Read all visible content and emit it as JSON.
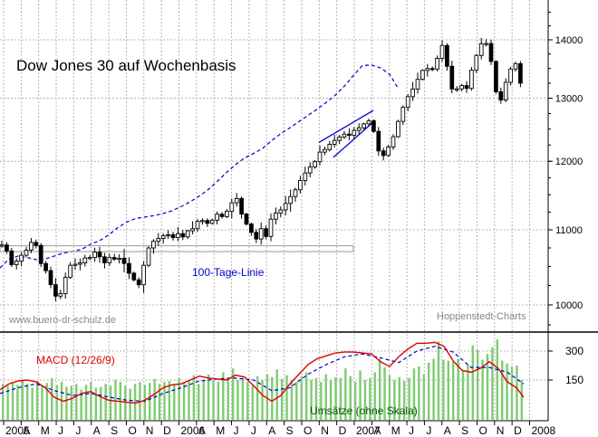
{
  "chart_data": [
    {
      "type": "candlestick",
      "title": "Dow Jones 30 auf Wochenbasis",
      "source": "Hoppenstedt-Charts",
      "watermark": "www.buero-dr-schulz.de",
      "y_scale": "log",
      "ylim": [
        9700,
        14700
      ],
      "y_ticks": [
        10000,
        11000,
        12000,
        13000,
        14000
      ],
      "grid": true,
      "x_labels": [
        "2005",
        "A",
        "M",
        "J",
        "J",
        "A",
        "S",
        "O",
        "N",
        "D",
        "2006",
        "A",
        "M",
        "J",
        "J",
        "A",
        "S",
        "O",
        "N",
        "D",
        "2007",
        "A",
        "M",
        "J",
        "J",
        "A",
        "S",
        "O",
        "N",
        "D",
        "2008"
      ],
      "colors": {
        "up_candle": "#ffffff",
        "down_candle": "#000000",
        "ma_line": "#0000cc",
        "trendline": "#0000cc",
        "grid": "#b4b4b4"
      },
      "annotations": [
        {
          "text": "100-Tage-Linie",
          "color": "#0000cc"
        }
      ],
      "series": [
        {
          "name": "100-Tage-Linie",
          "style": "dashed",
          "points": [
            [
              0,
              10480
            ],
            [
              10,
              10600
            ],
            [
              20,
              10640
            ],
            [
              30,
              10620
            ],
            [
              40,
              10590
            ],
            [
              50,
              10600
            ],
            [
              60,
              10640
            ],
            [
              70,
              10680
            ],
            [
              80,
              10700
            ],
            [
              90,
              10730
            ],
            [
              100,
              10800
            ],
            [
              110,
              10850
            ],
            [
              120,
              10930
            ],
            [
              130,
              11030
            ],
            [
              140,
              11110
            ],
            [
              150,
              11160
            ],
            [
              160,
              11180
            ],
            [
              170,
              11200
            ],
            [
              180,
              11230
            ],
            [
              190,
              11270
            ],
            [
              200,
              11330
            ],
            [
              210,
              11400
            ],
            [
              220,
              11480
            ],
            [
              230,
              11580
            ],
            [
              240,
              11700
            ],
            [
              250,
              11830
            ],
            [
              260,
              11950
            ],
            [
              270,
              12050
            ],
            [
              280,
              12120
            ],
            [
              290,
              12200
            ],
            [
              300,
              12320
            ],
            [
              310,
              12430
            ],
            [
              320,
              12520
            ],
            [
              330,
              12620
            ],
            [
              340,
              12720
            ],
            [
              350,
              12820
            ],
            [
              360,
              12930
            ],
            [
              370,
              13050
            ],
            [
              380,
              13200
            ],
            [
              390,
              13380
            ],
            [
              400,
              13550
            ],
            [
              410,
              13560
            ],
            [
              420,
              13510
            ],
            [
              430,
              13400
            ],
            [
              440,
              13150
            ]
          ]
        }
      ],
      "candles": {
        "close_path": [
          [
            0,
            10820
          ],
          [
            8,
            10700
          ],
          [
            14,
            10480
          ],
          [
            20,
            10610
          ],
          [
            28,
            10700
          ],
          [
            34,
            10820
          ],
          [
            38,
            10880
          ],
          [
            44,
            10560
          ],
          [
            52,
            10420
          ],
          [
            58,
            10180
          ],
          [
            64,
            10060
          ],
          [
            70,
            10240
          ],
          [
            74,
            10450
          ],
          [
            80,
            10560
          ],
          [
            86,
            10500
          ],
          [
            92,
            10620
          ],
          [
            98,
            10600
          ],
          [
            104,
            10700
          ],
          [
            110,
            10630
          ],
          [
            116,
            10540
          ],
          [
            122,
            10640
          ],
          [
            128,
            10580
          ],
          [
            134,
            10630
          ],
          [
            140,
            10450
          ],
          [
            148,
            10320
          ],
          [
            154,
            10250
          ],
          [
            158,
            10490
          ],
          [
            164,
            10750
          ],
          [
            170,
            10850
          ],
          [
            178,
            10900
          ],
          [
            184,
            10950
          ],
          [
            190,
            10880
          ],
          [
            196,
            10950
          ],
          [
            202,
            10900
          ],
          [
            208,
            11000
          ],
          [
            214,
            11020
          ],
          [
            220,
            11170
          ],
          [
            226,
            11100
          ],
          [
            232,
            11080
          ],
          [
            238,
            11230
          ],
          [
            246,
            11180
          ],
          [
            254,
            11330
          ],
          [
            260,
            11510
          ],
          [
            264,
            11300
          ],
          [
            270,
            11120
          ],
          [
            276,
            11000
          ],
          [
            282,
            10850
          ],
          [
            288,
            11020
          ],
          [
            294,
            10900
          ],
          [
            300,
            11200
          ],
          [
            306,
            11250
          ],
          [
            312,
            11300
          ],
          [
            318,
            11440
          ],
          [
            324,
            11520
          ],
          [
            330,
            11680
          ],
          [
            336,
            11810
          ],
          [
            342,
            11910
          ],
          [
            348,
            12000
          ],
          [
            352,
            12140
          ],
          [
            356,
            12140
          ],
          [
            362,
            12240
          ],
          [
            368,
            12310
          ],
          [
            374,
            12370
          ],
          [
            380,
            12420
          ],
          [
            386,
            12400
          ],
          [
            392,
            12500
          ],
          [
            398,
            12530
          ],
          [
            404,
            12620
          ],
          [
            410,
            12640
          ],
          [
            416,
            12200
          ],
          [
            422,
            12060
          ],
          [
            428,
            12200
          ],
          [
            434,
            12380
          ],
          [
            440,
            12650
          ],
          [
            446,
            12900
          ],
          [
            452,
            13080
          ],
          [
            458,
            13200
          ],
          [
            464,
            13430
          ],
          [
            470,
            13520
          ],
          [
            476,
            13450
          ],
          [
            482,
            13650
          ],
          [
            488,
            13900
          ],
          [
            492,
            13720
          ],
          [
            496,
            13200
          ],
          [
            502,
            13100
          ],
          [
            508,
            13250
          ],
          [
            514,
            13100
          ],
          [
            518,
            13350
          ],
          [
            524,
            13650
          ],
          [
            530,
            13900
          ],
          [
            534,
            14000
          ],
          [
            538,
            13900
          ],
          [
            542,
            13620
          ],
          [
            548,
            13050
          ],
          [
            554,
            12950
          ],
          [
            560,
            13400
          ],
          [
            564,
            13500
          ],
          [
            570,
            13600
          ],
          [
            574,
            13300
          ],
          [
            578,
            12800
          ]
        ]
      },
      "trendlines": [
        [
          [
            352,
            12290
          ],
          [
            412,
            12800
          ]
        ],
        [
          [
            368,
            12060
          ],
          [
            414,
            12640
          ]
        ],
        [
          [
            0,
            10700
          ],
          [
            390,
            10700
          ]
        ],
        [
          [
            0,
            10780
          ],
          [
            390,
            10780
          ]
        ]
      ]
    },
    {
      "type": "combo",
      "title": "MACD (12/26/9)",
      "title_color": "#dd0000",
      "volume_label": "Umsätze (ohne Skala)",
      "y_ticks": [
        150,
        300
      ],
      "ylim": [
        -80,
        360
      ],
      "colors": {
        "macd": "#dd0000",
        "signal": "#0000cc",
        "volume": "#7fcc72",
        "grid": "#b4b4b4"
      },
      "macd": [
        [
          0,
          100
        ],
        [
          10,
          130
        ],
        [
          20,
          145
        ],
        [
          30,
          150
        ],
        [
          40,
          140
        ],
        [
          50,
          110
        ],
        [
          60,
          60
        ],
        [
          70,
          40
        ],
        [
          80,
          55
        ],
        [
          90,
          80
        ],
        [
          100,
          90
        ],
        [
          110,
          65
        ],
        [
          120,
          45
        ],
        [
          130,
          40
        ],
        [
          140,
          35
        ],
        [
          150,
          30
        ],
        [
          160,
          45
        ],
        [
          170,
          75
        ],
        [
          180,
          110
        ],
        [
          190,
          125
        ],
        [
          200,
          130
        ],
        [
          210,
          150
        ],
        [
          220,
          170
        ],
        [
          230,
          160
        ],
        [
          240,
          155
        ],
        [
          250,
          150
        ],
        [
          260,
          175
        ],
        [
          270,
          165
        ],
        [
          280,
          120
        ],
        [
          290,
          70
        ],
        [
          300,
          40
        ],
        [
          310,
          70
        ],
        [
          320,
          130
        ],
        [
          330,
          180
        ],
        [
          340,
          230
        ],
        [
          350,
          260
        ],
        [
          360,
          275
        ],
        [
          370,
          290
        ],
        [
          380,
          295
        ],
        [
          390,
          295
        ],
        [
          400,
          290
        ],
        [
          410,
          285
        ],
        [
          420,
          245
        ],
        [
          430,
          220
        ],
        [
          440,
          270
        ],
        [
          450,
          310
        ],
        [
          460,
          340
        ],
        [
          470,
          340
        ],
        [
          480,
          345
        ],
        [
          490,
          325
        ],
        [
          500,
          250
        ],
        [
          510,
          200
        ],
        [
          520,
          190
        ],
        [
          530,
          210
        ],
        [
          540,
          245
        ],
        [
          550,
          210
        ],
        [
          560,
          140
        ],
        [
          570,
          110
        ],
        [
          578,
          60
        ]
      ],
      "signal": [
        [
          0,
          80
        ],
        [
          20,
          110
        ],
        [
          40,
          130
        ],
        [
          60,
          95
        ],
        [
          80,
          70
        ],
        [
          100,
          80
        ],
        [
          120,
          62
        ],
        [
          140,
          45
        ],
        [
          160,
          40
        ],
        [
          180,
          80
        ],
        [
          200,
          110
        ],
        [
          220,
          145
        ],
        [
          240,
          155
        ],
        [
          260,
          160
        ],
        [
          280,
          150
        ],
        [
          300,
          95
        ],
        [
          320,
          110
        ],
        [
          340,
          180
        ],
        [
          360,
          230
        ],
        [
          380,
          270
        ],
        [
          400,
          285
        ],
        [
          420,
          265
        ],
        [
          440,
          240
        ],
        [
          460,
          300
        ],
        [
          480,
          325
        ],
        [
          500,
          295
        ],
        [
          520,
          215
        ],
        [
          540,
          215
        ],
        [
          560,
          190
        ],
        [
          578,
          130
        ]
      ],
      "volume": [
        130,
        120,
        140,
        125,
        150,
        130,
        110,
        145,
        120,
        135,
        160,
        125,
        140,
        115,
        120,
        130,
        100,
        125,
        140,
        110,
        115,
        130,
        120,
        150,
        140,
        120,
        105,
        130,
        140,
        125,
        135,
        155,
        130,
        140,
        145,
        125,
        160,
        140,
        150,
        175,
        130,
        145,
        180,
        150,
        140,
        190,
        165,
        210,
        150,
        160,
        140,
        120,
        170,
        150,
        180,
        165,
        205,
        155,
        175,
        150,
        140,
        170,
        190,
        150,
        160,
        140,
        180,
        150,
        165,
        160,
        210,
        170,
        140,
        200,
        150,
        160,
        190,
        260,
        215,
        175,
        150,
        165,
        145,
        160,
        210,
        220,
        180,
        240,
        260,
        350,
        255,
        250,
        245,
        260,
        200,
        230,
        330,
        305,
        255,
        285,
        320,
        360,
        250,
        235,
        220,
        225,
        150
      ]
    }
  ]
}
